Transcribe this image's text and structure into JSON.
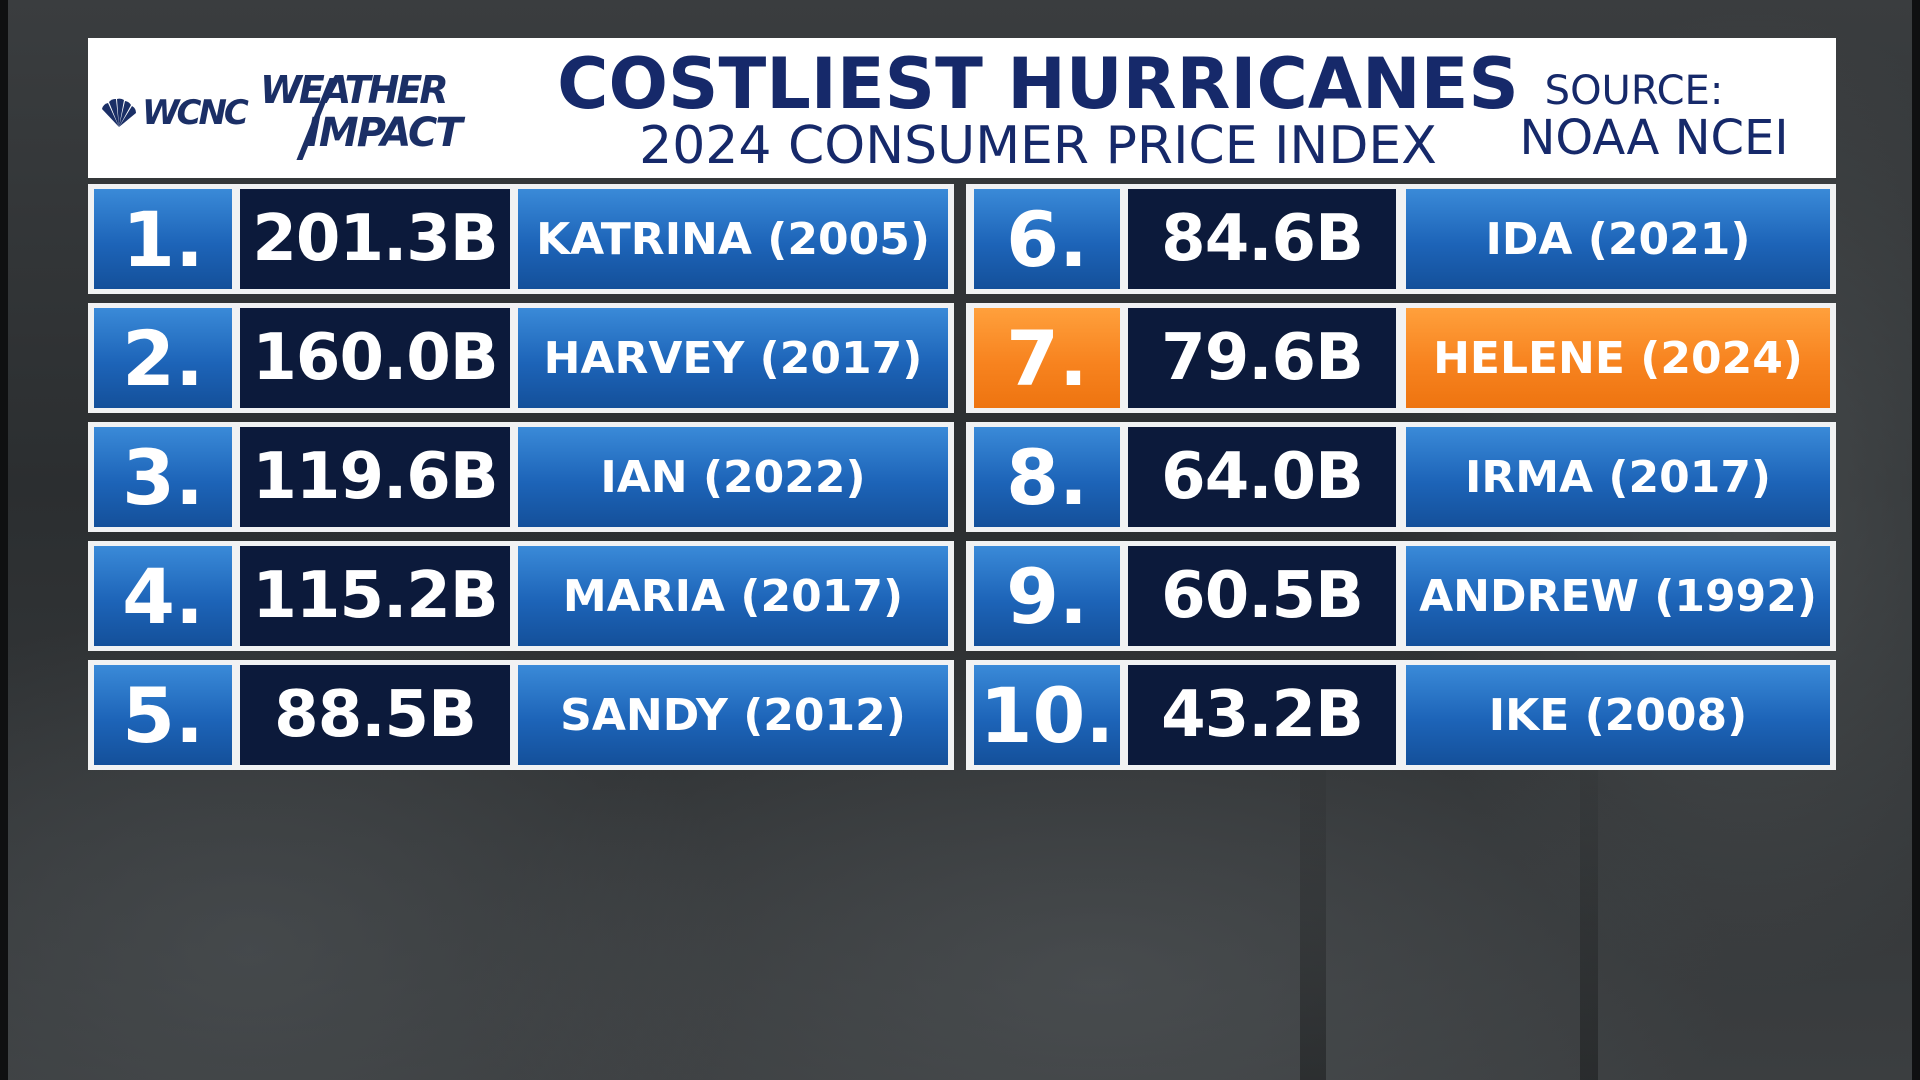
{
  "header": {
    "logo_station": "WCNC",
    "logo_weather": "WEATHER",
    "logo_impact": "IMPACT",
    "title": "COSTLIEST HURRICANES",
    "subtitle": "2024 CONSUMER PRICE INDEX",
    "source_label": "SOURCE:",
    "source_value": "NOAA NCEI"
  },
  "colors": {
    "rank_blue": "#1d64b8",
    "value_navy": "#0c1a3b",
    "highlight_orange": "#f7831f",
    "title_navy": "#16296a"
  },
  "rankings": [
    {
      "rank": "1.",
      "cost": "201.3B",
      "name": "KATRINA (2005)",
      "highlight": false
    },
    {
      "rank": "2.",
      "cost": "160.0B",
      "name": "HARVEY (2017)",
      "highlight": false
    },
    {
      "rank": "3.",
      "cost": "119.6B",
      "name": "IAN (2022)",
      "highlight": false
    },
    {
      "rank": "4.",
      "cost": "115.2B",
      "name": "MARIA (2017)",
      "highlight": false
    },
    {
      "rank": "5.",
      "cost": "88.5B",
      "name": "SANDY (2012)",
      "highlight": false
    },
    {
      "rank": "6.",
      "cost": "84.6B",
      "name": "IDA (2021)",
      "highlight": false
    },
    {
      "rank": "7.",
      "cost": "79.6B",
      "name": "HELENE (2024)",
      "highlight": true
    },
    {
      "rank": "8.",
      "cost": "64.0B",
      "name": "IRMA (2017)",
      "highlight": false
    },
    {
      "rank": "9.",
      "cost": "60.5B",
      "name": "ANDREW (1992)",
      "highlight": false
    },
    {
      "rank": "10.",
      "cost": "43.2B",
      "name": "IKE (2008)",
      "highlight": false
    }
  ]
}
